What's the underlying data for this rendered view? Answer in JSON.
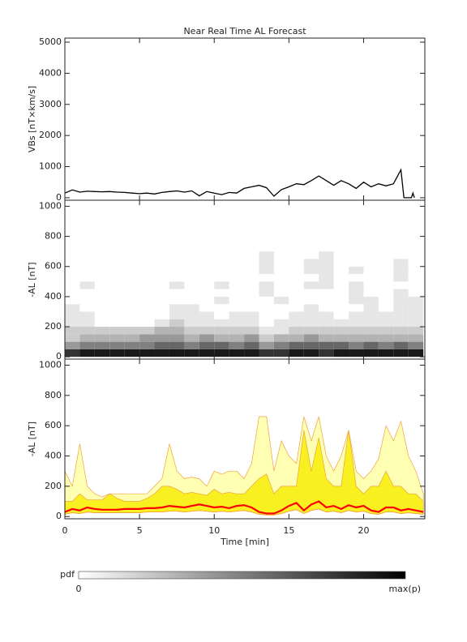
{
  "chart_data": [
    {
      "type": "line",
      "title": "Near Real Time AL Forecast",
      "ylabel": "VBs [nT×km/s]",
      "xlim": [
        0,
        24.1
      ],
      "xticks": [
        0,
        5,
        10,
        15,
        20
      ],
      "ylim": [
        -80,
        5130
      ],
      "yticks": [
        0,
        1000,
        2000,
        3000,
        4000,
        5000
      ],
      "color": "#000000",
      "x": [
        0,
        0.5,
        1,
        1.5,
        2,
        2.5,
        3,
        3.5,
        4,
        4.5,
        5,
        5.5,
        6,
        6.5,
        7,
        7.5,
        8,
        8.5,
        9,
        9.5,
        10,
        10.5,
        11,
        11.5,
        12,
        12.5,
        13,
        13.5,
        14,
        14.5,
        15,
        15.5,
        16,
        16.5,
        17,
        17.5,
        18,
        18.5,
        19,
        19.5,
        20,
        20.5,
        21,
        21.5,
        22,
        22.5,
        22.7,
        23.2,
        23.3,
        23.4
      ],
      "values": [
        150,
        250,
        180,
        210,
        200,
        190,
        200,
        180,
        170,
        150,
        130,
        150,
        120,
        170,
        200,
        220,
        180,
        220,
        60,
        200,
        150,
        100,
        170,
        150,
        300,
        350,
        400,
        320,
        50,
        260,
        350,
        450,
        420,
        550,
        700,
        550,
        400,
        550,
        450,
        300,
        500,
        350,
        450,
        380,
        450,
        900,
        0,
        0,
        150,
        0
      ]
    },
    {
      "type": "heatmap",
      "ylabel": "-AL [nT]",
      "xlim": [
        0,
        24.1
      ],
      "xticks": [
        0,
        5,
        10,
        15,
        20
      ],
      "ylim": [
        -15,
        1040
      ],
      "yticks": [
        0,
        200,
        400,
        600,
        800,
        1000
      ],
      "x": [
        0,
        1,
        2,
        3,
        4,
        5,
        6,
        7,
        8,
        9,
        10,
        11,
        12,
        13,
        14,
        15,
        16,
        17,
        18,
        19,
        20,
        21,
        22,
        23,
        24
      ],
      "y": [
        0,
        50,
        100,
        150,
        200,
        250,
        300,
        350,
        400,
        450,
        500,
        550,
        600,
        650,
        700
      ],
      "z": [
        [
          0.8,
          0.9,
          0.9,
          0.9,
          0.9,
          0.9,
          0.9,
          0.9,
          0.9,
          0.9,
          0.9,
          0.9,
          0.9,
          0.8,
          0.8,
          0.9,
          0.9,
          0.8,
          0.9,
          0.9,
          0.9,
          0.9,
          0.9,
          0.9
        ],
        [
          0.4,
          0.5,
          0.5,
          0.5,
          0.5,
          0.5,
          0.6,
          0.6,
          0.5,
          0.6,
          0.6,
          0.5,
          0.6,
          0.4,
          0.5,
          0.6,
          0.6,
          0.6,
          0.6,
          0.5,
          0.6,
          0.5,
          0.6,
          0.5
        ],
        [
          0.2,
          0.3,
          0.3,
          0.3,
          0.3,
          0.4,
          0.4,
          0.4,
          0.3,
          0.4,
          0.3,
          0.3,
          0.4,
          0.2,
          0.3,
          0.3,
          0.4,
          0.3,
          0.3,
          0.3,
          0.3,
          0.3,
          0.3,
          0.3
        ],
        [
          0.2,
          0.2,
          0.2,
          0.2,
          0.2,
          0.2,
          0.3,
          0.3,
          0.2,
          0.2,
          0.2,
          0.2,
          0.2,
          0.1,
          0.1,
          0.2,
          0.2,
          0.2,
          0.2,
          0.2,
          0.2,
          0.2,
          0.2,
          0.2
        ],
        [
          0.1,
          0.1,
          0,
          0,
          0,
          0,
          0.1,
          0.2,
          0.1,
          0.1,
          0.1,
          0.1,
          0.1,
          0,
          0.1,
          0.1,
          0.1,
          0.1,
          0.1,
          0.1,
          0.1,
          0.1,
          0.1,
          0.1
        ],
        [
          0.1,
          0.1,
          0,
          0,
          0,
          0,
          0,
          0.1,
          0.1,
          0.1,
          0,
          0.1,
          0.1,
          0,
          0,
          0.1,
          0.1,
          0.1,
          0,
          0.1,
          0.1,
          0.1,
          0.1,
          0.1
        ],
        [
          0.1,
          0,
          0,
          0,
          0,
          0,
          0,
          0.1,
          0.1,
          0,
          0,
          0,
          0,
          0,
          0,
          0,
          0.1,
          0,
          0,
          0,
          0.1,
          0,
          0.1,
          0.1
        ],
        [
          0,
          0,
          0,
          0,
          0,
          0,
          0,
          0,
          0,
          0,
          0.1,
          0,
          0,
          0,
          0.1,
          0,
          0,
          0,
          0,
          0.1,
          0.1,
          0,
          0.1,
          0.1
        ],
        [
          0,
          0,
          0,
          0,
          0,
          0,
          0,
          0,
          0,
          0,
          0,
          0,
          0,
          0.1,
          0,
          0,
          0,
          0,
          0,
          0.1,
          0,
          0,
          0.1,
          0
        ],
        [
          0,
          0.1,
          0,
          0,
          0,
          0,
          0,
          0.1,
          0,
          0,
          0.1,
          0,
          0,
          0.1,
          0,
          0,
          0.1,
          0.1,
          0,
          0.1,
          0,
          0,
          0,
          0
        ],
        [
          0,
          0,
          0,
          0,
          0,
          0,
          0,
          0,
          0,
          0,
          0,
          0,
          0,
          0,
          0,
          0,
          0,
          0.1,
          0,
          0,
          0,
          0,
          0.1,
          0
        ],
        [
          0,
          0,
          0,
          0,
          0,
          0,
          0,
          0,
          0,
          0,
          0,
          0,
          0,
          0.1,
          0,
          0,
          0.1,
          0.1,
          0,
          0.1,
          0,
          0,
          0.1,
          0
        ],
        [
          0,
          0,
          0,
          0,
          0,
          0,
          0,
          0,
          0,
          0,
          0,
          0,
          0,
          0.1,
          0,
          0,
          0.1,
          0.1,
          0,
          0,
          0,
          0,
          0.1,
          0
        ],
        [
          0,
          0,
          0,
          0,
          0,
          0,
          0,
          0,
          0,
          0,
          0,
          0,
          0,
          0.1,
          0,
          0,
          0,
          0.1,
          0,
          0,
          0,
          0,
          0,
          0
        ]
      ],
      "colorbar": {
        "label": "pdf",
        "min_label": "0",
        "max_label": "max(p)"
      }
    },
    {
      "type": "band",
      "ylabel": "-AL [nT]",
      "xlabel": "Time [min]",
      "xlim": [
        0,
        24.1
      ],
      "xticks": [
        0,
        5,
        10,
        15,
        20
      ],
      "ylim": [
        -15,
        1040
      ],
      "yticks": [
        0,
        200,
        400,
        600,
        800,
        1000
      ],
      "x": [
        0,
        0.5,
        1,
        1.5,
        2,
        2.5,
        3,
        3.5,
        4,
        4.5,
        5,
        5.5,
        6,
        6.5,
        7,
        7.5,
        8,
        8.5,
        9,
        9.5,
        10,
        10.5,
        11,
        11.5,
        12,
        12.5,
        13,
        13.5,
        14,
        14.5,
        15,
        15.5,
        16,
        16.5,
        17,
        17.5,
        18,
        18.5,
        19,
        19.5,
        20,
        20.5,
        21,
        21.5,
        22,
        22.5,
        23,
        23.5,
        24
      ],
      "series": [
        {
          "color": "#f0a040",
          "fill": "#ffffb4",
          "values": [
            300,
            200,
            480,
            200,
            150,
            130,
            150,
            150,
            150,
            150,
            150,
            150,
            200,
            250,
            480,
            300,
            250,
            260,
            250,
            200,
            300,
            280,
            300,
            300,
            250,
            350,
            660,
            660,
            300,
            500,
            400,
            350,
            660,
            500,
            660,
            400,
            300,
            400,
            570,
            300,
            250,
            300,
            380,
            600,
            500,
            630,
            400,
            300,
            150
          ]
        },
        {
          "color": "#f0a040",
          "fill": "#f8f020",
          "values": [
            100,
            100,
            150,
            110,
            110,
            110,
            150,
            120,
            100,
            100,
            100,
            120,
            150,
            200,
            200,
            180,
            150,
            160,
            150,
            140,
            180,
            150,
            160,
            150,
            150,
            200,
            250,
            280,
            150,
            200,
            200,
            200,
            570,
            300,
            520,
            250,
            200,
            200,
            570,
            200,
            150,
            200,
            200,
            300,
            200,
            200,
            150,
            150,
            100
          ]
        },
        {
          "color": "#f0a040",
          "values": [
            15,
            25,
            20,
            30,
            25,
            25,
            25,
            25,
            25,
            25,
            25,
            30,
            30,
            30,
            35,
            35,
            30,
            35,
            40,
            35,
            30,
            35,
            30,
            35,
            40,
            30,
            15,
            10,
            10,
            20,
            35,
            45,
            20,
            40,
            50,
            30,
            35,
            25,
            40,
            30,
            35,
            20,
            15,
            30,
            30,
            20,
            25,
            20,
            15
          ]
        },
        {
          "color": "#ff0000",
          "values": [
            30,
            50,
            40,
            60,
            50,
            45,
            45,
            45,
            50,
            50,
            50,
            55,
            55,
            60,
            70,
            65,
            60,
            70,
            80,
            70,
            60,
            65,
            55,
            70,
            75,
            60,
            30,
            20,
            20,
            40,
            70,
            90,
            40,
            80,
            100,
            60,
            70,
            50,
            75,
            60,
            70,
            40,
            30,
            60,
            60,
            40,
            50,
            40,
            30
          ]
        }
      ]
    }
  ]
}
